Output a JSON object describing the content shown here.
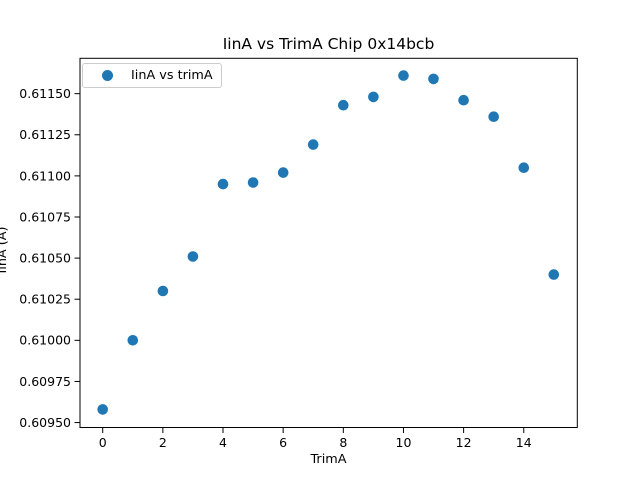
{
  "chart_data": {
    "type": "scatter",
    "title": "IinA vs TrimA Chip 0x14bcb",
    "xlabel": "TrimA",
    "ylabel": "IinA (A)",
    "legend": {
      "label": "IinA vs trimA",
      "position": "upper left"
    },
    "marker_color": "#1f77b4",
    "grid": false,
    "x": [
      0,
      1,
      2,
      3,
      4,
      5,
      6,
      7,
      8,
      9,
      10,
      11,
      12,
      13,
      14,
      15
    ],
    "y": [
      0.60958,
      0.61,
      0.6103,
      0.61051,
      0.61095,
      0.61096,
      0.61102,
      0.61119,
      0.61143,
      0.61148,
      0.61161,
      0.61159,
      0.61146,
      0.61136,
      0.61105,
      0.6104
    ],
    "xlim": [
      -0.755,
      15.78
    ],
    "ylim": [
      0.60947,
      0.611715
    ],
    "xticks": {
      "values": [
        0,
        2,
        4,
        6,
        8,
        10,
        12,
        14
      ],
      "labels": [
        "0",
        "2",
        "4",
        "6",
        "8",
        "10",
        "12",
        "14"
      ]
    },
    "yticks": {
      "values": [
        0.6095,
        0.60975,
        0.61,
        0.61025,
        0.6105,
        0.61075,
        0.611,
        0.61125,
        0.6115
      ],
      "labels": [
        "0.60950",
        "0.60975",
        "0.61000",
        "0.61025",
        "0.61050",
        "0.61075",
        "0.61100",
        "0.61125",
        "0.61150"
      ]
    }
  }
}
